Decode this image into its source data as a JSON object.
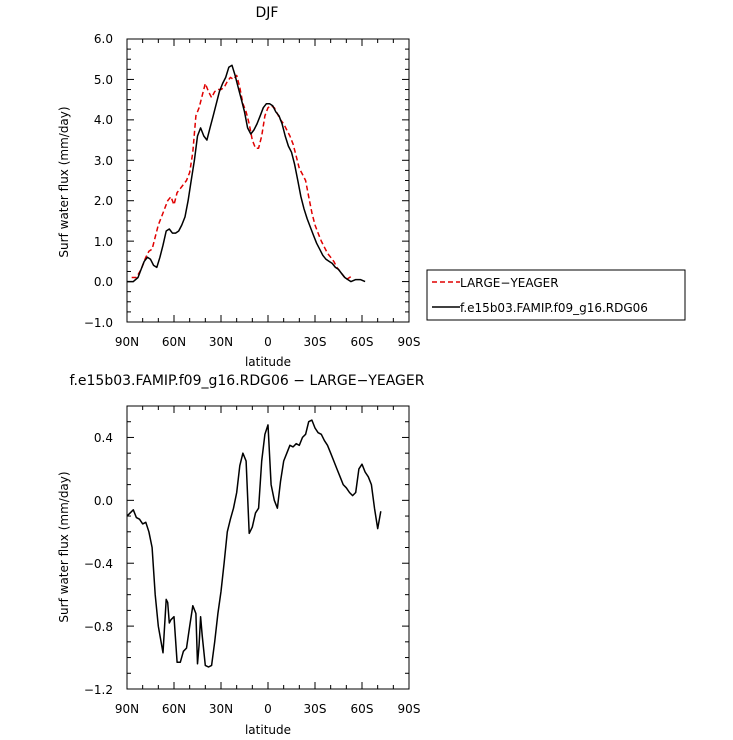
{
  "chart_data": [
    {
      "type": "line",
      "title": "DJF",
      "xlabel": "latitude",
      "ylabel": "Surf water flux (mm/day)",
      "xlim": [
        -90,
        90
      ],
      "ylim": [
        -1.0,
        6.0
      ],
      "xticks": [
        -90,
        -60,
        -30,
        0,
        30,
        60,
        90
      ],
      "xticklabels": [
        "90N",
        "60N",
        "30N",
        "0",
        "30S",
        "60S",
        "90S"
      ],
      "yticks": [
        -1.0,
        0.0,
        1.0,
        2.0,
        3.0,
        4.0,
        5.0,
        6.0
      ],
      "yticklabels": [
        "−1.0",
        "0.0",
        "1.0",
        "2.0",
        "3.0",
        "4.0",
        "5.0",
        "6.0"
      ],
      "legend_position": "right",
      "series": [
        {
          "name": "LARGE−YEAGER",
          "color": "#e00000",
          "dash": "dashed",
          "points": [
            [
              -87,
              0.1
            ],
            [
              -84,
              0.1
            ],
            [
              -81,
              0.3
            ],
            [
              -78,
              0.6
            ],
            [
              -76,
              0.75
            ],
            [
              -74,
              0.8
            ],
            [
              -72,
              1.1
            ],
            [
              -70,
              1.4
            ],
            [
              -68,
              1.6
            ],
            [
              -66,
              1.8
            ],
            [
              -64,
              2.0
            ],
            [
              -62,
              2.1
            ],
            [
              -60,
              1.9
            ],
            [
              -58,
              2.2
            ],
            [
              -56,
              2.3
            ],
            [
              -54,
              2.4
            ],
            [
              -52,
              2.5
            ],
            [
              -50,
              2.7
            ],
            [
              -48,
              3.2
            ],
            [
              -46,
              4.1
            ],
            [
              -44,
              4.3
            ],
            [
              -42,
              4.6
            ],
            [
              -40,
              4.9
            ],
            [
              -38,
              4.7
            ],
            [
              -36,
              4.55
            ],
            [
              -34,
              4.7
            ],
            [
              -32,
              4.75
            ],
            [
              -30,
              4.75
            ],
            [
              -28,
              4.8
            ],
            [
              -26,
              4.95
            ],
            [
              -24,
              5.05
            ],
            [
              -22,
              5.0
            ],
            [
              -20,
              5.1
            ],
            [
              -18,
              4.8
            ],
            [
              -16,
              4.4
            ],
            [
              -14,
              4.2
            ],
            [
              -12,
              3.9
            ],
            [
              -10,
              3.5
            ],
            [
              -8,
              3.3
            ],
            [
              -6,
              3.3
            ],
            [
              -4,
              3.6
            ],
            [
              -2,
              4.1
            ],
            [
              0,
              4.3
            ],
            [
              2,
              4.35
            ],
            [
              4,
              4.3
            ],
            [
              6,
              4.15
            ],
            [
              8,
              4.0
            ],
            [
              10,
              3.9
            ],
            [
              12,
              3.75
            ],
            [
              14,
              3.6
            ],
            [
              16,
              3.4
            ],
            [
              18,
              3.1
            ],
            [
              20,
              2.8
            ],
            [
              22,
              2.65
            ],
            [
              24,
              2.5
            ],
            [
              26,
              2.1
            ],
            [
              28,
              1.7
            ],
            [
              30,
              1.4
            ],
            [
              32,
              1.2
            ],
            [
              34,
              1.0
            ],
            [
              36,
              0.85
            ],
            [
              38,
              0.7
            ],
            [
              40,
              0.6
            ],
            [
              42,
              0.5
            ],
            [
              44,
              0.35
            ],
            [
              46,
              0.25
            ],
            [
              48,
              0.15
            ],
            [
              50,
              0.05
            ],
            [
              52,
              0.1
            ],
            [
              54,
              0.15
            ]
          ]
        },
        {
          "name": "f.e15b03.FAMIP.f09_g16.RDG06",
          "color": "#000000",
          "dash": "solid",
          "points": [
            [
              -90,
              0.0
            ],
            [
              -86,
              0.0
            ],
            [
              -83,
              0.1
            ],
            [
              -81,
              0.3
            ],
            [
              -79,
              0.5
            ],
            [
              -77,
              0.6
            ],
            [
              -75,
              0.55
            ],
            [
              -73,
              0.4
            ],
            [
              -71,
              0.35
            ],
            [
              -69,
              0.6
            ],
            [
              -67,
              0.9
            ],
            [
              -65,
              1.25
            ],
            [
              -63,
              1.3
            ],
            [
              -61,
              1.2
            ],
            [
              -59,
              1.2
            ],
            [
              -57,
              1.25
            ],
            [
              -55,
              1.4
            ],
            [
              -53,
              1.6
            ],
            [
              -51,
              2.0
            ],
            [
              -49,
              2.5
            ],
            [
              -47,
              3.0
            ],
            [
              -45,
              3.6
            ],
            [
              -43,
              3.8
            ],
            [
              -41,
              3.6
            ],
            [
              -39,
              3.5
            ],
            [
              -37,
              3.8
            ],
            [
              -35,
              4.1
            ],
            [
              -33,
              4.4
            ],
            [
              -31,
              4.7
            ],
            [
              -29,
              4.9
            ],
            [
              -27,
              5.05
            ],
            [
              -25,
              5.3
            ],
            [
              -23,
              5.35
            ],
            [
              -21,
              5.1
            ],
            [
              -19,
              4.8
            ],
            [
              -17,
              4.5
            ],
            [
              -15,
              4.2
            ],
            [
              -13,
              3.8
            ],
            [
              -11,
              3.65
            ],
            [
              -9,
              3.75
            ],
            [
              -7,
              3.9
            ],
            [
              -5,
              4.1
            ],
            [
              -3,
              4.3
            ],
            [
              -1,
              4.4
            ],
            [
              1,
              4.4
            ],
            [
              3,
              4.35
            ],
            [
              5,
              4.2
            ],
            [
              7,
              4.1
            ],
            [
              9,
              3.9
            ],
            [
              11,
              3.6
            ],
            [
              13,
              3.35
            ],
            [
              15,
              3.2
            ],
            [
              17,
              2.9
            ],
            [
              19,
              2.5
            ],
            [
              21,
              2.1
            ],
            [
              23,
              1.8
            ],
            [
              25,
              1.55
            ],
            [
              27,
              1.35
            ],
            [
              29,
              1.15
            ],
            [
              31,
              0.95
            ],
            [
              33,
              0.8
            ],
            [
              35,
              0.65
            ],
            [
              37,
              0.55
            ],
            [
              39,
              0.5
            ],
            [
              41,
              0.45
            ],
            [
              43,
              0.35
            ],
            [
              45,
              0.3
            ],
            [
              47,
              0.2
            ],
            [
              49,
              0.1
            ],
            [
              51,
              0.05
            ],
            [
              53,
              0.0
            ],
            [
              56,
              0.05
            ],
            [
              59,
              0.05
            ],
            [
              62,
              0.0
            ]
          ]
        }
      ]
    },
    {
      "type": "line",
      "title": "f.e15b03.FAMIP.f09_g16.RDG06 − LARGE−YEAGER",
      "xlabel": "latitude",
      "ylabel": "Surf water flux (mm/day)",
      "xlim": [
        -90,
        90
      ],
      "ylim": [
        -1.2,
        0.6
      ],
      "xticks": [
        -90,
        -60,
        -30,
        0,
        30,
        60,
        90
      ],
      "xticklabels": [
        "90N",
        "60N",
        "30N",
        "0",
        "30S",
        "60S",
        "90S"
      ],
      "yticks": [
        -1.2,
        -0.8,
        -0.4,
        0.0,
        0.4
      ],
      "yticklabels": [
        "−1.2",
        "−0.8",
        "−0.4",
        "0.0",
        "0.4"
      ],
      "series": [
        {
          "name": "",
          "color": "#000000",
          "dash": "solid",
          "points": [
            [
              -90,
              -0.1
            ],
            [
              -86,
              -0.06
            ],
            [
              -84,
              -0.11
            ],
            [
              -82,
              -0.12
            ],
            [
              -80,
              -0.15
            ],
            [
              -78,
              -0.14
            ],
            [
              -76,
              -0.2
            ],
            [
              -74,
              -0.3
            ],
            [
              -72,
              -0.6
            ],
            [
              -70,
              -0.8
            ],
            [
              -67,
              -0.97
            ],
            [
              -65,
              -0.63
            ],
            [
              -64,
              -0.65
            ],
            [
              -63,
              -0.78
            ],
            [
              -62,
              -0.76
            ],
            [
              -60,
              -0.74
            ],
            [
              -58,
              -1.03
            ],
            [
              -56,
              -1.03
            ],
            [
              -54,
              -0.96
            ],
            [
              -52,
              -0.94
            ],
            [
              -50,
              -0.8
            ],
            [
              -48,
              -0.67
            ],
            [
              -46,
              -0.72
            ],
            [
              -45,
              -1.04
            ],
            [
              -44,
              -0.92
            ],
            [
              -43,
              -0.74
            ],
            [
              -42,
              -0.86
            ],
            [
              -40,
              -1.05
            ],
            [
              -38,
              -1.06
            ],
            [
              -36,
              -1.05
            ],
            [
              -34,
              -0.9
            ],
            [
              -32,
              -0.72
            ],
            [
              -30,
              -0.58
            ],
            [
              -28,
              -0.4
            ],
            [
              -26,
              -0.2
            ],
            [
              -24,
              -0.12
            ],
            [
              -22,
              -0.05
            ],
            [
              -20,
              0.05
            ],
            [
              -18,
              0.22
            ],
            [
              -16,
              0.3
            ],
            [
              -14,
              0.25
            ],
            [
              -12,
              -0.21
            ],
            [
              -10,
              -0.17
            ],
            [
              -8,
              -0.08
            ],
            [
              -6,
              -0.05
            ],
            [
              -4,
              0.25
            ],
            [
              -2,
              0.42
            ],
            [
              0,
              0.48
            ],
            [
              2,
              0.1
            ],
            [
              4,
              0.0
            ],
            [
              6,
              -0.05
            ],
            [
              8,
              0.12
            ],
            [
              10,
              0.25
            ],
            [
              12,
              0.3
            ],
            [
              14,
              0.35
            ],
            [
              16,
              0.34
            ],
            [
              18,
              0.36
            ],
            [
              20,
              0.35
            ],
            [
              22,
              0.4
            ],
            [
              24,
              0.42
            ],
            [
              26,
              0.5
            ],
            [
              28,
              0.51
            ],
            [
              30,
              0.46
            ],
            [
              32,
              0.43
            ],
            [
              34,
              0.42
            ],
            [
              36,
              0.38
            ],
            [
              38,
              0.35
            ],
            [
              40,
              0.3
            ],
            [
              42,
              0.25
            ],
            [
              44,
              0.2
            ],
            [
              46,
              0.15
            ],
            [
              48,
              0.1
            ],
            [
              50,
              0.08
            ],
            [
              52,
              0.05
            ],
            [
              54,
              0.03
            ],
            [
              56,
              0.05
            ],
            [
              58,
              0.2
            ],
            [
              60,
              0.23
            ],
            [
              62,
              0.18
            ],
            [
              64,
              0.15
            ],
            [
              66,
              0.1
            ],
            [
              68,
              -0.05
            ],
            [
              70,
              -0.18
            ],
            [
              72,
              -0.07
            ]
          ]
        }
      ]
    }
  ]
}
